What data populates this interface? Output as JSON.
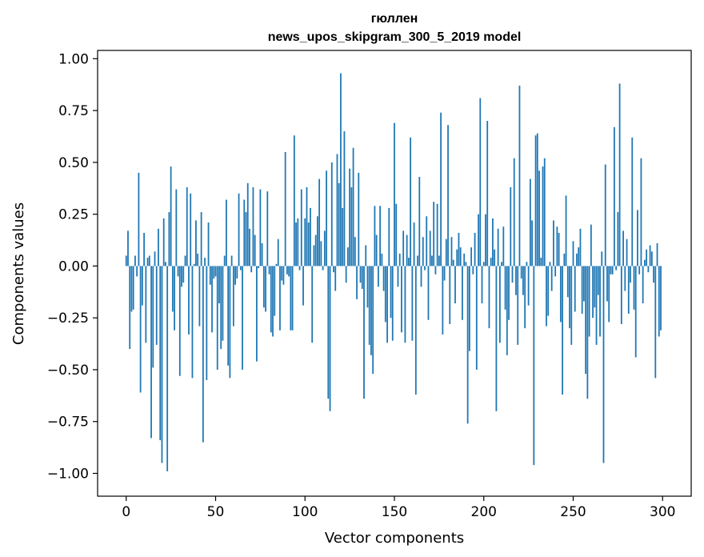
{
  "chart_data": {
    "type": "bar",
    "title": "гюллен",
    "subtitle": "news_upos_skipgram_300_5_2019 model",
    "xlabel": "Vector components",
    "ylabel": "Components values",
    "xlim": [
      -16,
      316
    ],
    "ylim": [
      -1.11,
      1.04
    ],
    "xticks": [
      0,
      50,
      100,
      150,
      200,
      250,
      300
    ],
    "xtick_labels": [
      "0",
      "50",
      "100",
      "150",
      "200",
      "250",
      "300"
    ],
    "yticks": [
      1.0,
      0.75,
      0.5,
      0.25,
      0.0,
      -0.25,
      -0.5,
      -0.75,
      -1.0
    ],
    "ytick_labels": [
      "1.00",
      "0.75",
      "0.50",
      "0.25",
      "0.00",
      "−0.25",
      "−0.50",
      "−0.75",
      "−1.00"
    ],
    "bar_color": "#1f77b4",
    "grid": false,
    "values": [
      0.05,
      0.17,
      -0.4,
      -0.22,
      -0.21,
      0.05,
      -0.05,
      0.45,
      -0.61,
      -0.19,
      0.16,
      -0.37,
      0.04,
      0.05,
      -0.83,
      -0.49,
      0.07,
      -0.38,
      0.18,
      -0.84,
      -0.95,
      0.23,
      0.02,
      -0.99,
      0.26,
      0.48,
      -0.22,
      -0.31,
      0.37,
      -0.05,
      -0.53,
      -0.1,
      -0.08,
      0.05,
      0.38,
      -0.33,
      0.35,
      -0.54,
      0.01,
      0.22,
      0.06,
      -0.29,
      0.26,
      -0.85,
      0.04,
      -0.55,
      0.21,
      -0.09,
      -0.32,
      -0.06,
      -0.05,
      -0.5,
      -0.18,
      -0.4,
      -0.36,
      0.05,
      0.32,
      -0.48,
      -0.54,
      0.05,
      -0.29,
      -0.09,
      -0.06,
      0.35,
      -0.02,
      -0.5,
      0.32,
      0.26,
      0.4,
      0.18,
      -0.03,
      0.38,
      0.15,
      -0.46,
      -0.01,
      0.37,
      0.11,
      -0.2,
      -0.22,
      0.36,
      -0.04,
      -0.32,
      -0.34,
      -0.24,
      0.01,
      0.13,
      -0.31,
      -0.07,
      -0.09,
      0.55,
      -0.04,
      -0.05,
      -0.31,
      -0.31,
      0.63,
      0.21,
      0.23,
      -0.02,
      0.37,
      -0.19,
      0.23,
      0.38,
      0.21,
      0.28,
      -0.37,
      0.1,
      0.15,
      0.24,
      0.42,
      0.12,
      -0.02,
      0.17,
      0.46,
      -0.64,
      -0.7,
      0.5,
      -0.03,
      -0.12,
      0.54,
      0.4,
      0.93,
      0.28,
      0.65,
      -0.08,
      0.09,
      0.47,
      0.38,
      0.57,
      0.14,
      -0.16,
      0.45,
      -0.08,
      -0.11,
      -0.64,
      0.1,
      -0.2,
      -0.38,
      -0.43,
      -0.52,
      0.29,
      0.15,
      -0.1,
      0.29,
      0.06,
      -0.12,
      -0.27,
      -0.37,
      0.28,
      -0.25,
      -0.36,
      0.69,
      0.3,
      -0.1,
      0.06,
      -0.32,
      0.17,
      -0.37,
      0.15,
      0.04,
      0.62,
      -0.36,
      0.21,
      -0.62,
      0.05,
      0.43,
      -0.1,
      0.14,
      -0.02,
      0.24,
      -0.26,
      0.17,
      0.05,
      0.31,
      -0.04,
      0.3,
      0.05,
      0.74,
      -0.33,
      -0.07,
      0.13,
      0.68,
      -0.28,
      0.14,
      0.03,
      -0.18,
      0.08,
      0.16,
      0.09,
      -0.26,
      0.06,
      0.02,
      -0.76,
      -0.41,
      0.09,
      -0.04,
      0.16,
      -0.5,
      0.25,
      0.81,
      -0.18,
      0.02,
      0.25,
      0.7,
      -0.3,
      0.04,
      0.23,
      0.08,
      -0.7,
      0.18,
      -0.37,
      0.02,
      0.19,
      -0.21,
      -0.43,
      -0.26,
      0.38,
      -0.08,
      0.52,
      -0.14,
      -0.38,
      0.87,
      -0.06,
      -0.14,
      -0.3,
      0.02,
      -0.19,
      0.42,
      0.22,
      -0.96,
      0.63,
      0.64,
      0.46,
      0.04,
      0.48,
      0.52,
      -0.29,
      -0.24,
      0.02,
      -0.12,
      0.22,
      -0.05,
      0.19,
      0.16,
      -0.27,
      -0.62,
      0.06,
      0.34,
      -0.15,
      -0.3,
      -0.38,
      0.12,
      -0.22,
      0.06,
      0.09,
      0.18,
      -0.23,
      -0.17,
      -0.52,
      -0.64,
      -0.34,
      0.2,
      -0.25,
      -0.2,
      -0.38,
      -0.14,
      -0.34,
      0.07,
      -0.95,
      0.49,
      -0.17,
      -0.27,
      -0.04,
      -0.04,
      0.67,
      -0.02,
      0.26,
      0.88,
      -0.28,
      0.17,
      -0.12,
      0.13,
      -0.23,
      -0.08,
      0.62,
      -0.21,
      -0.44,
      0.27,
      -0.04,
      0.52,
      -0.18,
      0.03,
      0.08,
      -0.03,
      0.1,
      0.07,
      -0.08,
      -0.54,
      0.11,
      -0.34,
      -0.31
    ]
  }
}
